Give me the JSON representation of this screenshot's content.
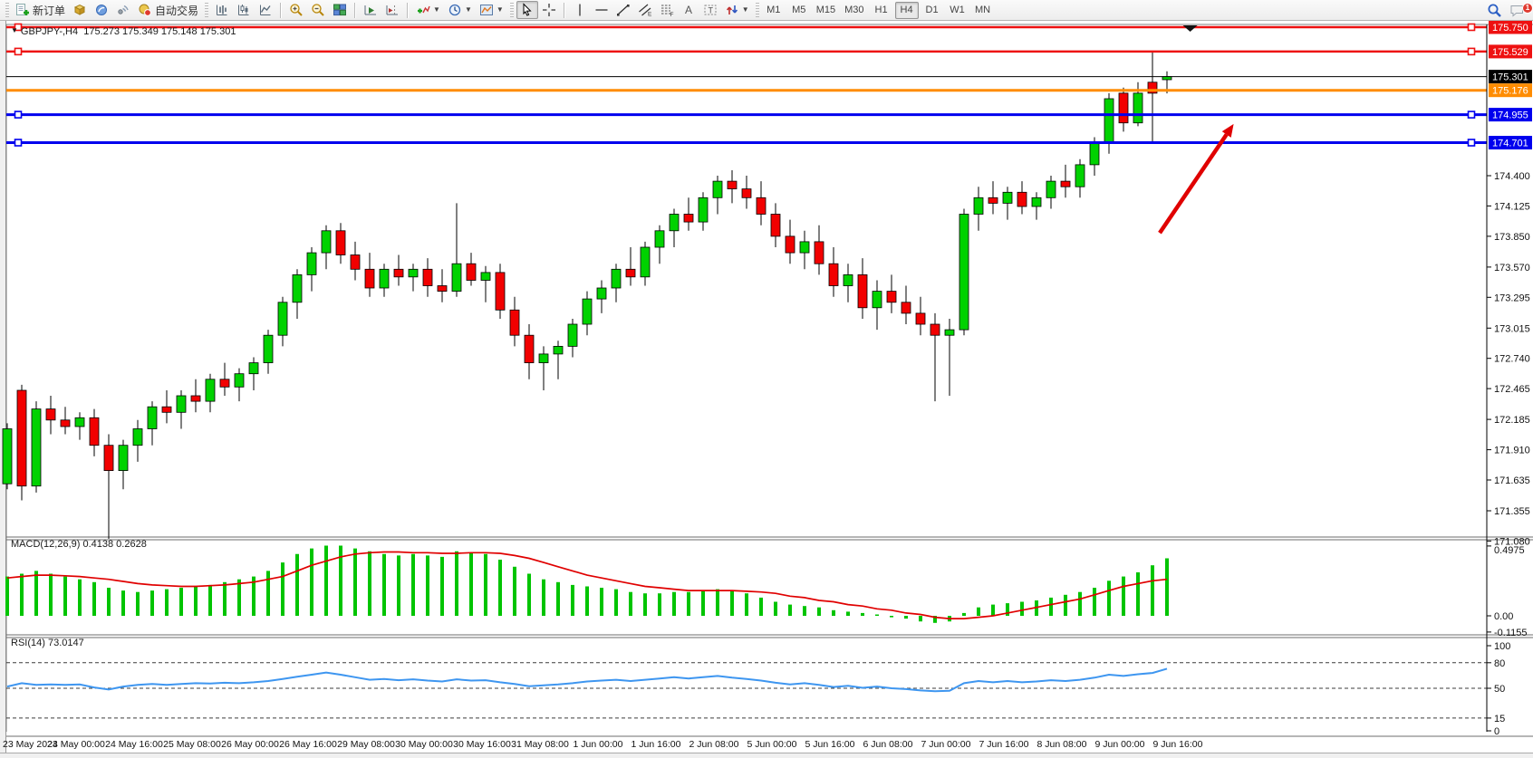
{
  "toolbar": {
    "new_order_label": "新订单",
    "auto_trading_label": "自动交易",
    "timeframes": [
      "M1",
      "M5",
      "M15",
      "M30",
      "H1",
      "H4",
      "D1",
      "W1",
      "MN"
    ],
    "active_timeframe": "H4",
    "notification_count": "1"
  },
  "chart": {
    "symbol": "GBPJPY-,H4",
    "ohlc_text": "175.273 175.349 175.148 175.301",
    "bid": "175.301"
  },
  "indicators_header": {
    "macd_name": "MACD(12,26,9)",
    "macd_values": "0.4138 0.2628",
    "rsi_name": "RSI(14)",
    "rsi_value": "73.0147"
  },
  "chart_data": {
    "type": "candlestick",
    "symbol": "GBPJPY-",
    "timeframe": "H4",
    "title": "GBPJPY-,H4  175.273 175.349 175.148 175.301",
    "x_labels": [
      "23 May 2023",
      "24 May 00:00",
      "24 May 16:00",
      "25 May 08:00",
      "26 May 00:00",
      "26 May 16:00",
      "29 May 08:00",
      "30 May 00:00",
      "30 May 16:00",
      "31 May 08:00",
      "1 Jun 00:00",
      "1 Jun 16:00",
      "2 Jun 08:00",
      "5 Jun 00:00",
      "5 Jun 16:00",
      "6 Jun 08:00",
      "7 Jun 00:00",
      "7 Jun 16:00",
      "8 Jun 08:00",
      "9 Jun 00:00",
      "9 Jun 16:00"
    ],
    "price_axis_ticks": [
      "174.400",
      "174.125",
      "173.850",
      "173.570",
      "173.295",
      "173.015",
      "172.740",
      "172.465",
      "172.185",
      "171.910",
      "171.635",
      "171.355",
      "171.080"
    ],
    "up_color": "#00d200",
    "down_color": "#f20000",
    "candles": [
      [
        171.6,
        172.15,
        171.55,
        172.1
      ],
      [
        172.45,
        172.5,
        171.45,
        171.58
      ],
      [
        171.58,
        172.35,
        171.52,
        172.28
      ],
      [
        172.28,
        172.4,
        172.05,
        172.18
      ],
      [
        172.18,
        172.3,
        172.05,
        172.12
      ],
      [
        172.12,
        172.25,
        172.0,
        172.2
      ],
      [
        172.2,
        172.28,
        171.85,
        171.95
      ],
      [
        171.95,
        172.05,
        171.1,
        171.72
      ],
      [
        171.72,
        172.0,
        171.55,
        171.95
      ],
      [
        171.95,
        172.18,
        171.8,
        172.1
      ],
      [
        172.1,
        172.35,
        171.95,
        172.3
      ],
      [
        172.3,
        172.45,
        172.15,
        172.25
      ],
      [
        172.25,
        172.45,
        172.1,
        172.4
      ],
      [
        172.4,
        172.55,
        172.25,
        172.35
      ],
      [
        172.35,
        172.6,
        172.25,
        172.55
      ],
      [
        172.55,
        172.7,
        172.4,
        172.48
      ],
      [
        172.48,
        172.65,
        172.35,
        172.6
      ],
      [
        172.6,
        172.75,
        172.45,
        172.7
      ],
      [
        172.7,
        173.0,
        172.6,
        172.95
      ],
      [
        172.95,
        173.3,
        172.85,
        173.25
      ],
      [
        173.25,
        173.55,
        173.1,
        173.5
      ],
      [
        173.5,
        173.75,
        173.35,
        173.7
      ],
      [
        173.7,
        173.95,
        173.55,
        173.9
      ],
      [
        173.9,
        173.97,
        173.6,
        173.68
      ],
      [
        173.68,
        173.8,
        173.45,
        173.55
      ],
      [
        173.55,
        173.7,
        173.3,
        173.38
      ],
      [
        173.38,
        173.6,
        173.3,
        173.55
      ],
      [
        173.55,
        173.68,
        173.4,
        173.48
      ],
      [
        173.48,
        173.6,
        173.35,
        173.55
      ],
      [
        173.55,
        173.65,
        173.3,
        173.4
      ],
      [
        173.4,
        173.55,
        173.25,
        173.35
      ],
      [
        173.35,
        174.15,
        173.3,
        173.6
      ],
      [
        173.6,
        173.7,
        173.4,
        173.45
      ],
      [
        173.45,
        173.58,
        173.25,
        173.52
      ],
      [
        173.52,
        173.6,
        173.1,
        173.18
      ],
      [
        173.18,
        173.3,
        172.85,
        172.95
      ],
      [
        172.95,
        173.05,
        172.55,
        172.7
      ],
      [
        172.7,
        172.85,
        172.45,
        172.78
      ],
      [
        172.78,
        172.9,
        172.55,
        172.85
      ],
      [
        172.85,
        173.1,
        172.75,
        173.05
      ],
      [
        173.05,
        173.35,
        172.95,
        173.28
      ],
      [
        173.28,
        173.45,
        173.15,
        173.38
      ],
      [
        173.38,
        173.6,
        173.25,
        173.55
      ],
      [
        173.55,
        173.75,
        173.4,
        173.48
      ],
      [
        173.48,
        173.8,
        173.4,
        173.75
      ],
      [
        173.75,
        173.95,
        173.6,
        173.9
      ],
      [
        173.9,
        174.1,
        173.75,
        174.05
      ],
      [
        174.05,
        174.2,
        173.9,
        173.98
      ],
      [
        173.98,
        174.25,
        173.9,
        174.2
      ],
      [
        174.2,
        174.4,
        174.05,
        174.35
      ],
      [
        174.35,
        174.45,
        174.15,
        174.28
      ],
      [
        174.28,
        174.4,
        174.1,
        174.2
      ],
      [
        174.2,
        174.35,
        173.95,
        174.05
      ],
      [
        174.05,
        174.15,
        173.75,
        173.85
      ],
      [
        173.85,
        174.0,
        173.6,
        173.7
      ],
      [
        173.7,
        173.9,
        173.55,
        173.8
      ],
      [
        173.8,
        173.95,
        173.5,
        173.6
      ],
      [
        173.6,
        173.75,
        173.3,
        173.4
      ],
      [
        173.4,
        173.6,
        173.25,
        173.5
      ],
      [
        173.5,
        173.65,
        173.1,
        173.2
      ],
      [
        173.2,
        173.45,
        173.0,
        173.35
      ],
      [
        173.35,
        173.5,
        173.15,
        173.25
      ],
      [
        173.25,
        173.4,
        173.05,
        173.15
      ],
      [
        173.15,
        173.3,
        172.95,
        173.05
      ],
      [
        173.05,
        173.15,
        172.35,
        172.95
      ],
      [
        172.95,
        173.1,
        172.4,
        173.0
      ],
      [
        173.0,
        174.1,
        172.95,
        174.05
      ],
      [
        174.05,
        174.3,
        173.9,
        174.2
      ],
      [
        174.2,
        174.35,
        174.05,
        174.15
      ],
      [
        174.15,
        174.3,
        174.0,
        174.25
      ],
      [
        174.25,
        174.35,
        174.05,
        174.12
      ],
      [
        174.12,
        174.25,
        174.0,
        174.2
      ],
      [
        174.2,
        174.4,
        174.1,
        174.35
      ],
      [
        174.35,
        174.5,
        174.2,
        174.3
      ],
      [
        174.3,
        174.55,
        174.2,
        174.5
      ],
      [
        174.5,
        174.75,
        174.4,
        174.7
      ],
      [
        174.7,
        175.15,
        174.6,
        175.1
      ],
      [
        175.15,
        175.2,
        174.8,
        174.88
      ],
      [
        174.88,
        175.25,
        174.85,
        175.15
      ],
      [
        175.25,
        175.53,
        174.7,
        175.15
      ],
      [
        175.273,
        175.349,
        175.148,
        175.301
      ]
    ],
    "horizontal_lines": [
      {
        "price": 175.75,
        "label": "175.750",
        "color": "#ee1111",
        "width": 2.5,
        "handles": true
      },
      {
        "price": 175.529,
        "label": "175.529",
        "color": "#ee1111",
        "width": 2.5,
        "handles": true
      },
      {
        "price": 175.301,
        "label": "175.301",
        "color": "#000000",
        "width": 1,
        "handles": false,
        "role": "bid-line"
      },
      {
        "price": 175.176,
        "label": "175.176",
        "color": "#ff8c00",
        "width": 3,
        "handles": false
      },
      {
        "price": 174.955,
        "label": "174.955",
        "color": "#0000ee",
        "width": 3,
        "handles": true
      },
      {
        "price": 174.701,
        "label": "174.701",
        "color": "#0000ee",
        "width": 3,
        "handles": true
      }
    ],
    "indicators": [
      {
        "name": "MACD",
        "label": "MACD(12,26,9) 0.4138 0.2628",
        "axis_labels": [
          "0.4975",
          "0.00",
          "-0.1155"
        ],
        "axis_values": [
          0.4975,
          0.0,
          -0.1155
        ],
        "histogram_color": "#00c400",
        "signal_color": "#e00000",
        "histogram": [
          0.28,
          0.3,
          0.32,
          0.3,
          0.28,
          0.26,
          0.24,
          0.2,
          0.18,
          0.17,
          0.18,
          0.19,
          0.2,
          0.21,
          0.22,
          0.24,
          0.26,
          0.28,
          0.32,
          0.38,
          0.44,
          0.48,
          0.5,
          0.5,
          0.48,
          0.46,
          0.44,
          0.43,
          0.44,
          0.43,
          0.42,
          0.46,
          0.45,
          0.44,
          0.4,
          0.35,
          0.3,
          0.26,
          0.24,
          0.22,
          0.21,
          0.2,
          0.19,
          0.17,
          0.16,
          0.16,
          0.17,
          0.17,
          0.18,
          0.19,
          0.18,
          0.16,
          0.13,
          0.1,
          0.08,
          0.07,
          0.06,
          0.04,
          0.03,
          0.02,
          0.01,
          -0.01,
          -0.02,
          -0.04,
          -0.05,
          -0.04,
          0.02,
          0.06,
          0.08,
          0.09,
          0.1,
          0.11,
          0.13,
          0.15,
          0.17,
          0.2,
          0.25,
          0.28,
          0.31,
          0.36,
          0.41
        ],
        "signal": [
          0.27,
          0.28,
          0.29,
          0.29,
          0.285,
          0.28,
          0.27,
          0.26,
          0.245,
          0.23,
          0.22,
          0.215,
          0.21,
          0.21,
          0.215,
          0.22,
          0.23,
          0.24,
          0.26,
          0.28,
          0.32,
          0.36,
          0.39,
          0.42,
          0.44,
          0.45,
          0.455,
          0.455,
          0.45,
          0.45,
          0.445,
          0.445,
          0.45,
          0.45,
          0.445,
          0.43,
          0.41,
          0.38,
          0.35,
          0.32,
          0.29,
          0.27,
          0.25,
          0.23,
          0.21,
          0.2,
          0.19,
          0.18,
          0.18,
          0.18,
          0.18,
          0.175,
          0.17,
          0.16,
          0.14,
          0.13,
          0.11,
          0.1,
          0.08,
          0.07,
          0.05,
          0.04,
          0.02,
          0.01,
          -0.01,
          -0.02,
          -0.02,
          -0.01,
          0.0,
          0.02,
          0.04,
          0.06,
          0.08,
          0.1,
          0.12,
          0.15,
          0.18,
          0.21,
          0.23,
          0.25,
          0.26
        ]
      },
      {
        "name": "RSI",
        "label": "RSI(14) 73.0147",
        "axis_labels": [
          "100",
          "80",
          "50",
          "15",
          "0"
        ],
        "axis_values": [
          100,
          80,
          50,
          15,
          0
        ],
        "levels": [
          80,
          50,
          15
        ],
        "line_color": "#3e96f0",
        "values": [
          52,
          56,
          54,
          54.5,
          54,
          54.5,
          51,
          48.5,
          52,
          54,
          55,
          54,
          55,
          56,
          55.5,
          56.5,
          56,
          57,
          58.5,
          61,
          63.5,
          66,
          68.5,
          66,
          63,
          60,
          61,
          59.5,
          60.5,
          59,
          58,
          60.5,
          59,
          59.5,
          57,
          55,
          52.5,
          53.5,
          54.5,
          56,
          58,
          59,
          60,
          58.5,
          60,
          61.5,
          63,
          61.5,
          63,
          64.5,
          62.5,
          61,
          59,
          56.5,
          54.5,
          56,
          54,
          51.5,
          53,
          50.5,
          52,
          50,
          49,
          47.5,
          46.5,
          47,
          56,
          58.5,
          57,
          58.5,
          57,
          58,
          59.5,
          58.5,
          60,
          62.5,
          66,
          64.5,
          66.5,
          68,
          73.0
        ]
      }
    ],
    "annotations": [
      {
        "type": "trend-arrow",
        "color": "#e00000",
        "from_bar": 79.5,
        "from_price": 173.88,
        "to_bar": 84.6,
        "to_price": 174.87
      },
      {
        "type": "down-triangle-marker",
        "color": "#111111",
        "bar": 81.6,
        "price": 175.78
      }
    ]
  }
}
